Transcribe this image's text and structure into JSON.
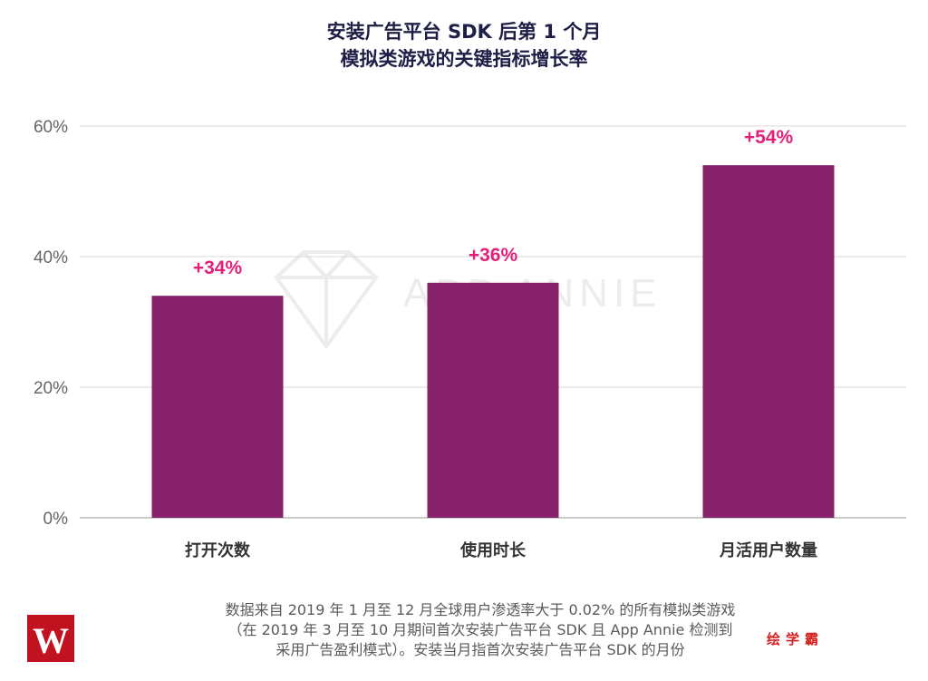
{
  "chart_data": {
    "type": "bar",
    "title_lines": [
      "安装广告平台 SDK 后第 1 个月",
      "模拟类游戏的关键指标增长率"
    ],
    "categories": [
      "打开次数",
      "使用时长",
      "月活用户数量"
    ],
    "values": [
      34,
      36,
      54
    ],
    "data_labels": [
      "+34%",
      "+36%",
      "+54%"
    ],
    "ylim": [
      0,
      60
    ],
    "yticks": [
      0,
      20,
      40,
      60
    ],
    "ytick_labels": [
      "0%",
      "20%",
      "40%",
      "60%"
    ],
    "grid": true,
    "colors": {
      "bar": "#86206a",
      "label": "#e2207a",
      "grid": "#d9d9d9",
      "axis": "#999999"
    }
  },
  "watermark": "APP ANNIE",
  "footnote_lines": [
    "数据来自 2019 年 1 月至 12 月全球用户渗透率大于 0.02% 的所有模拟类游戏",
    "（在 2019 年 3 月至 10 月期间首次安装广告平台 SDK 且 App Annie 检测到",
    "采用广告盈利模式）。安装当月指首次安装广告平台 SDK 的月份"
  ],
  "logo_letter": "W",
  "brand_text": "绘学霸"
}
